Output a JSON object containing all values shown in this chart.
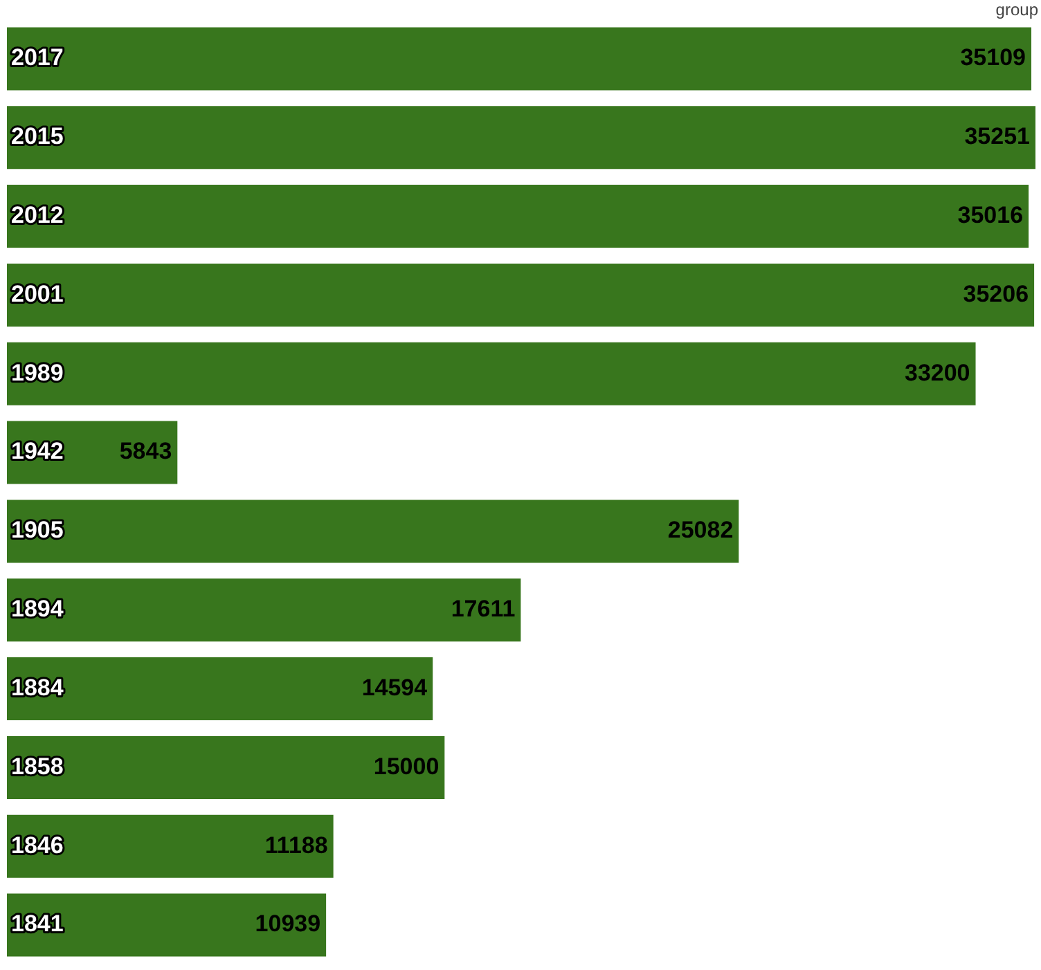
{
  "chart_data": {
    "type": "bar",
    "orientation": "horizontal",
    "categories": [
      "2017",
      "2015",
      "2012",
      "2001",
      "1989",
      "1942",
      "1905",
      "1894",
      "1884",
      "1858",
      "1846",
      "1841"
    ],
    "values": [
      35109,
      35251,
      35016,
      35206,
      33200,
      5843,
      25082,
      17611,
      14594,
      15000,
      11188,
      10939
    ],
    "color": "#38761d",
    "data_labels": true,
    "annotations": [
      "group"
    ]
  }
}
